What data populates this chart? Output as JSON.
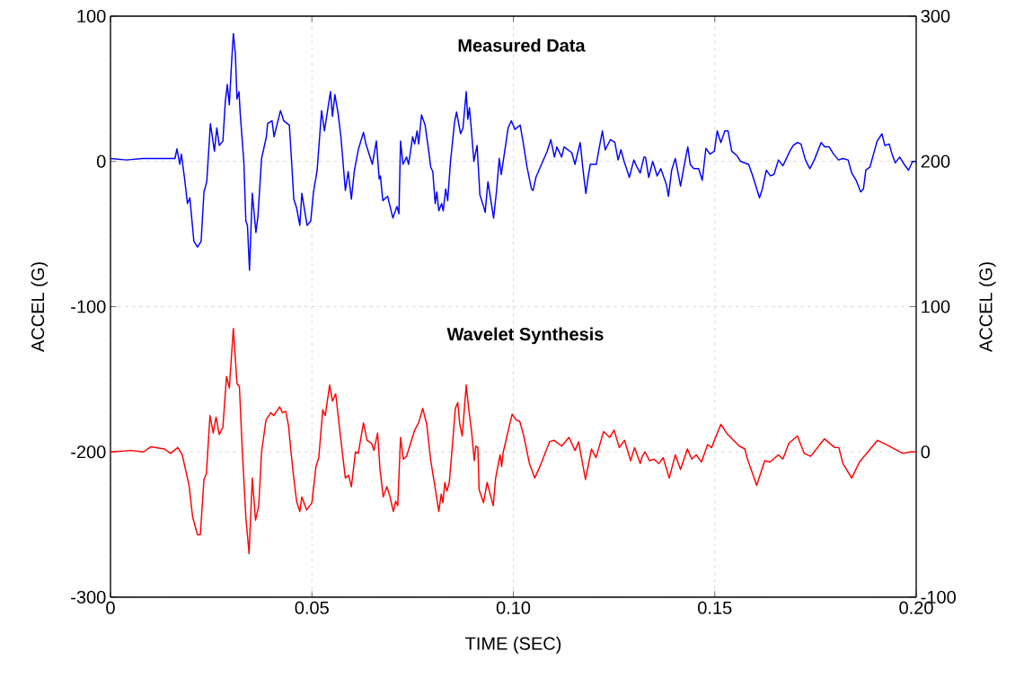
{
  "chart_data": {
    "type": "line",
    "xlabel": "TIME (SEC)",
    "ylabel": "ACCEL (G)",
    "y2label": "ACCEL (G)",
    "xlim": [
      0,
      0.2
    ],
    "xticks": [
      0,
      0.05,
      {
        "value": 0.1,
        "label": "0.10"
      },
      0.15,
      {
        "value": 0.2,
        "label": "0.20"
      }
    ],
    "ylim": [
      -300,
      100
    ],
    "yticks": [
      -300,
      -200,
      -100,
      0,
      100
    ],
    "y2lim": [
      -100,
      300
    ],
    "y2ticks": [
      -100,
      0,
      100,
      200,
      300
    ],
    "grid": true,
    "series": [
      {
        "name": "Measured Data",
        "color": "#0000ff",
        "x": [
          0,
          0.004,
          0.008,
          0.012,
          0.016,
          0.0165,
          0.0172,
          0.0176,
          0.0184,
          0.0191,
          0.0197,
          0.0201,
          0.0207,
          0.0216,
          0.0225,
          0.0232,
          0.0239,
          0.0248,
          0.0258,
          0.0264,
          0.027,
          0.0279,
          0.0285,
          0.029,
          0.0295,
          0.0301,
          0.0305,
          0.031,
          0.0314,
          0.0319,
          0.0322,
          0.0331,
          0.0336,
          0.034,
          0.0345,
          0.0352,
          0.0361,
          0.0366,
          0.0375,
          0.0387,
          0.039,
          0.0401,
          0.0406,
          0.0422,
          0.043,
          0.0444,
          0.045,
          0.0455,
          0.0462,
          0.047,
          0.0475,
          0.0488,
          0.0497,
          0.0504,
          0.0513,
          0.0524,
          0.0531,
          0.0546,
          0.0551,
          0.0557,
          0.0565,
          0.0572,
          0.0583,
          0.059,
          0.0598,
          0.0605,
          0.0615,
          0.0628,
          0.0634,
          0.065,
          0.066,
          0.0667,
          0.067,
          0.0676,
          0.0688,
          0.0701,
          0.0711,
          0.0716,
          0.072,
          0.0726,
          0.0735,
          0.074,
          0.075,
          0.0755,
          0.0761,
          0.0765,
          0.0772,
          0.0781,
          0.0789,
          0.0795,
          0.08,
          0.0806,
          0.081,
          0.0815,
          0.0822,
          0.0826,
          0.0832,
          0.0837,
          0.0844,
          0.0854,
          0.0859,
          0.0869,
          0.0875,
          0.0883,
          0.0887,
          0.0891,
          0.0896,
          0.0902,
          0.091,
          0.0917,
          0.0926,
          0.093,
          0.0937,
          0.0951,
          0.0958,
          0.0965,
          0.097,
          0.0978,
          0.0987,
          0.0995,
          0.1004,
          0.1017,
          0.1025,
          0.1034,
          0.1045,
          0.1049,
          0.1056,
          0.1073,
          0.1084,
          0.1093,
          0.1102,
          0.1108,
          0.112,
          0.1126,
          0.1145,
          0.1153,
          0.1158,
          0.1166,
          0.1173,
          0.118,
          0.1186,
          0.1191,
          0.1206,
          0.1213,
          0.1221,
          0.1228,
          0.1241,
          0.1252,
          0.126,
          0.1267,
          0.1275,
          0.1288,
          0.1299,
          0.1307,
          0.1315,
          0.1324,
          0.1328,
          0.1336,
          0.1346,
          0.1357,
          0.1366,
          0.138,
          0.1385,
          0.1393,
          0.1402,
          0.1415,
          0.1426,
          0.1433,
          0.1439,
          0.1448,
          0.146,
          0.1469,
          0.1478,
          0.1488,
          0.1499,
          0.1506,
          0.1515,
          0.1525,
          0.1533,
          0.1542,
          0.1555,
          0.1564,
          0.1584,
          0.1593,
          0.1602,
          0.1611,
          0.1618,
          0.1628,
          0.1638,
          0.1647,
          0.1658,
          0.1669,
          0.1676,
          0.1688,
          0.1695,
          0.1705,
          0.1714,
          0.1725,
          0.1736,
          0.1747,
          0.1764,
          0.1773,
          0.1784,
          0.1795,
          0.1807,
          0.1818,
          0.1831,
          0.184,
          0.1851,
          0.1862,
          0.1869,
          0.1875,
          0.1885,
          0.1896,
          0.1903,
          0.1915,
          0.1922,
          0.1933,
          0.194,
          0.1948,
          0.1959,
          0.197,
          0.1981,
          0.1991,
          0.2
        ],
        "values": [
          2,
          1,
          2,
          2,
          2,
          8.6,
          -2,
          5,
          -12,
          -29,
          -25,
          -37,
          -55,
          -59,
          -55,
          -21,
          -14,
          26,
          7,
          23,
          11,
          14,
          41,
          53,
          39,
          70,
          88,
          74,
          43,
          48,
          33,
          0,
          -41,
          -44,
          -75,
          -22,
          -49,
          -38,
          2,
          17,
          26,
          28,
          17,
          35,
          28,
          25,
          -2,
          -26,
          -32,
          -44,
          -22,
          -44,
          -41,
          -21,
          -6,
          35,
          21,
          48,
          31,
          46,
          33,
          17,
          -20,
          -7,
          -26,
          -7,
          8,
          20,
          12,
          -2,
          14,
          -12,
          -10,
          -27,
          -24,
          -39,
          -31,
          -36,
          14,
          -2,
          3,
          -2,
          17,
          12,
          21,
          12,
          32,
          25,
          9,
          -4,
          -7,
          -29,
          -21,
          -34,
          -29,
          -34,
          -19,
          -27,
          0,
          27,
          34,
          19,
          23,
          48,
          29,
          37,
          21,
          0,
          11,
          -23,
          -31,
          -35,
          -14,
          -39,
          -21,
          2,
          -9,
          6,
          23,
          28,
          22,
          25,
          12,
          -4,
          -19,
          -20,
          -11,
          0,
          7,
          15,
          3,
          10,
          3,
          10,
          6,
          -2,
          4,
          13,
          -6,
          -22,
          -10,
          -2,
          -2,
          9,
          21,
          8,
          15,
          13,
          1,
          8,
          0,
          -11,
          1,
          -4,
          -8,
          3,
          3,
          -11,
          0,
          -10,
          -5,
          -16,
          -24,
          -6,
          2,
          -17,
          0,
          10,
          -2,
          -5,
          -5,
          -13,
          9,
          5,
          7,
          21,
          13,
          21,
          21,
          7,
          4,
          0,
          -2,
          -9,
          -17,
          -25,
          -19,
          -6,
          -10,
          -9,
          1,
          -3,
          1,
          8,
          11,
          13,
          12,
          1,
          -5,
          1,
          13,
          10,
          10,
          5,
          1,
          2,
          1,
          -8,
          -13,
          -21,
          -19,
          -6,
          -4,
          7,
          14,
          19,
          11,
          12,
          5,
          -1,
          3,
          -2,
          -6,
          0,
          0
        ]
      },
      {
        "name": "Wavelet Synthesis",
        "color": "#ff0000",
        "axis": "y2",
        "x": [
          0,
          0.0052,
          0.0082,
          0.01,
          0.0134,
          0.0149,
          0.0167,
          0.0178,
          0.0195,
          0.0204,
          0.0216,
          0.0223,
          0.0232,
          0.0238,
          0.0247,
          0.0255,
          0.0262,
          0.027,
          0.0279,
          0.0288,
          0.0295,
          0.0305,
          0.0314,
          0.032,
          0.0327,
          0.0336,
          0.0344,
          0.0352,
          0.036,
          0.0368,
          0.0375,
          0.0386,
          0.0398,
          0.0405,
          0.042,
          0.0427,
          0.0435,
          0.0442,
          0.0448,
          0.0455,
          0.0462,
          0.047,
          0.0475,
          0.0487,
          0.05,
          0.051,
          0.0517,
          0.0527,
          0.0533,
          0.0544,
          0.0551,
          0.0559,
          0.0572,
          0.0583,
          0.0591,
          0.0598,
          0.0608,
          0.0615,
          0.0628,
          0.0637,
          0.0648,
          0.0654,
          0.0663,
          0.0669,
          0.0677,
          0.0686,
          0.0694,
          0.0702,
          0.0708,
          0.0713,
          0.072,
          0.0727,
          0.0735,
          0.0755,
          0.0765,
          0.0775,
          0.0785,
          0.0795,
          0.0806,
          0.0815,
          0.0821,
          0.0825,
          0.083,
          0.0835,
          0.0841,
          0.0848,
          0.0856,
          0.0862,
          0.0867,
          0.0873,
          0.0878,
          0.0883,
          0.0889,
          0.0896,
          0.0903,
          0.0907,
          0.0912,
          0.0915,
          0.0926,
          0.0935,
          0.095,
          0.0956,
          0.0967,
          0.0971,
          0.0975,
          0.0997,
          0.1007,
          0.1016,
          0.1025,
          0.104,
          0.1053,
          0.1066,
          0.109,
          0.1101,
          0.112,
          0.1138,
          0.1153,
          0.1162,
          0.1179,
          0.1194,
          0.1205,
          0.1224,
          0.1239,
          0.125,
          0.1263,
          0.1276,
          0.1291,
          0.1301,
          0.1315,
          0.132,
          0.1327,
          0.1338,
          0.1349,
          0.1361,
          0.1372,
          0.1387,
          0.1402,
          0.1415,
          0.1432,
          0.1443,
          0.1454,
          0.1467,
          0.1482,
          0.1492,
          0.1515,
          0.1532,
          0.1561,
          0.1575,
          0.158,
          0.1604,
          0.1624,
          0.1637,
          0.1658,
          0.1669,
          0.1684,
          0.1705,
          0.1722,
          0.1738,
          0.1772,
          0.1798,
          0.1808,
          0.1818,
          0.184,
          0.1859,
          0.1904,
          0.1926,
          0.1967,
          0.1985,
          0.2
        ],
        "values": [
          0,
          1,
          0,
          3.5,
          2,
          -1,
          3,
          -2,
          -23,
          -45,
          -57,
          -57,
          -19,
          -15,
          25,
          13,
          24,
          12,
          17,
          52,
          44,
          85,
          47,
          45,
          2,
          -45,
          -70,
          -18,
          -47,
          -37,
          0,
          22,
          27,
          25,
          31,
          27,
          28,
          18,
          0,
          -18,
          -34,
          -41,
          -31,
          -40,
          -35,
          -10,
          -4,
          29,
          25,
          46,
          35,
          40,
          8,
          -18,
          -16,
          -24,
          0,
          -1,
          20,
          8,
          6,
          1,
          13,
          -12,
          -31,
          -24,
          -31,
          -41,
          -34,
          -37,
          10,
          -5,
          -3,
          15,
          20,
          30,
          19,
          -6,
          -25,
          -41,
          -29,
          -35,
          -21,
          -27,
          -21,
          2,
          30,
          34,
          19,
          11,
          28,
          46,
          30,
          15,
          -6,
          4,
          3,
          -26,
          -35,
          -21,
          -37,
          -18,
          -2,
          -10,
          0,
          26,
          22,
          21,
          12,
          -8,
          -18,
          -10,
          7,
          8,
          4,
          10,
          1,
          7,
          -19,
          2,
          -4,
          14,
          10,
          15,
          3,
          8,
          -6,
          3,
          -8,
          -3,
          0,
          -6,
          -5,
          -8,
          -4,
          -18,
          -2,
          -12,
          2,
          -5,
          -2,
          -7,
          5,
          3,
          19,
          12,
          4,
          2,
          -4,
          -23,
          -6,
          -7,
          -2,
          -5,
          6,
          11,
          -1,
          -3,
          9,
          3,
          3,
          -8,
          -18,
          -7,
          8,
          5,
          -1,
          0,
          0
        ]
      }
    ]
  }
}
